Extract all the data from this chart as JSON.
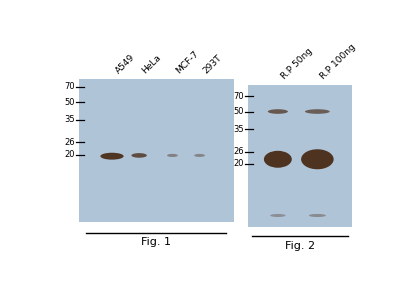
{
  "bg_color": "#b0c4d8",
  "fig_width": 4.0,
  "fig_height": 3.07,
  "fig1_labels": [
    "A549",
    "HeLa",
    "MCF-7",
    "293T"
  ],
  "fig2_labels": [
    "R.P 50ng",
    "R.P 100ng"
  ],
  "fig_caption1": "Fig. 1",
  "fig_caption2": "Fig. 2",
  "ladder_kd": [
    70,
    50,
    35,
    26,
    20
  ],
  "band_color": "#4a2e1a",
  "band_color_light": "#6a4a32"
}
